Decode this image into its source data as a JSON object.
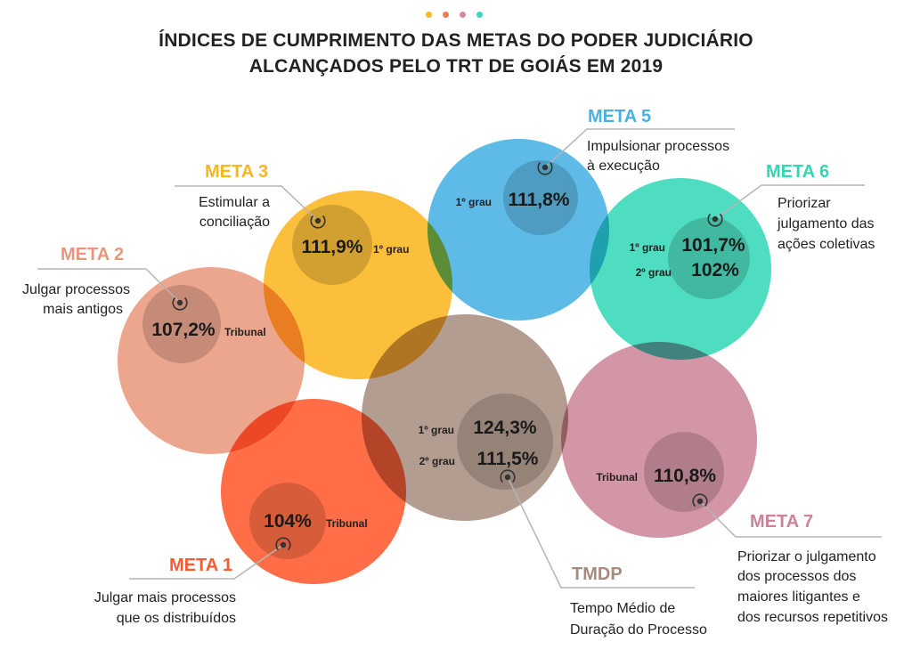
{
  "header": {
    "title_line1": "ÍNDICES DE CUMPRIMENTO DAS METAS DO PODER JUDICIÁRIO",
    "title_line2": "ALCANÇADOS PELO TRT DE GOIÁS EM 2019",
    "dot_colors": [
      "#f6b92a",
      "#ef7b52",
      "#d58a9c",
      "#3fd3bd"
    ]
  },
  "metas": {
    "meta1": {
      "title": "META 1",
      "color": "#ff5a2c",
      "desc": [
        "Julgar mais processos",
        "que os distribuídos"
      ],
      "values": [
        {
          "label": "Tribunal",
          "value": "104%"
        }
      ]
    },
    "meta2": {
      "title": "META 2",
      "color": "#e9977a",
      "desc": [
        "Julgar processos",
        "mais antigos"
      ],
      "values": [
        {
          "label": "Tribunal",
          "value": "107,2%"
        }
      ]
    },
    "meta3": {
      "title": "META 3",
      "color": "#fbb61f",
      "desc": [
        "Estimular a",
        "conciliação"
      ],
      "values": [
        {
          "label": "1º grau",
          "value": "111,9%"
        }
      ]
    },
    "meta5": {
      "title": "META 5",
      "color": "#47b1e3",
      "desc": [
        "Impulsionar processos",
        "à execução"
      ],
      "values": [
        {
          "label": "1º grau",
          "value": "111,8%"
        }
      ]
    },
    "meta6": {
      "title": "META 6",
      "color": "#2fd7b5",
      "desc": [
        "Priorizar",
        "julgamento das",
        "ações coletivas"
      ],
      "values": [
        {
          "label": "1º grau",
          "value": "101,7%"
        },
        {
          "label": "2º grau",
          "value": "102%"
        }
      ]
    },
    "meta7": {
      "title": "META 7",
      "color": "#cc8397",
      "desc": [
        "Priorizar o julgamento",
        "dos processos dos",
        "maiores litigantes e",
        "dos recursos repetitivos"
      ],
      "values": [
        {
          "label": "Tribunal",
          "value": "110,8%"
        }
      ]
    },
    "tmdp": {
      "title": "TMDP",
      "color": "#a68b7d",
      "desc": [
        "Tempo Médio de",
        "Duração do Processo"
      ],
      "values": [
        {
          "label": "1º grau",
          "value": "124,3%"
        },
        {
          "label": "2º grau",
          "value": "111,5%"
        }
      ]
    }
  }
}
